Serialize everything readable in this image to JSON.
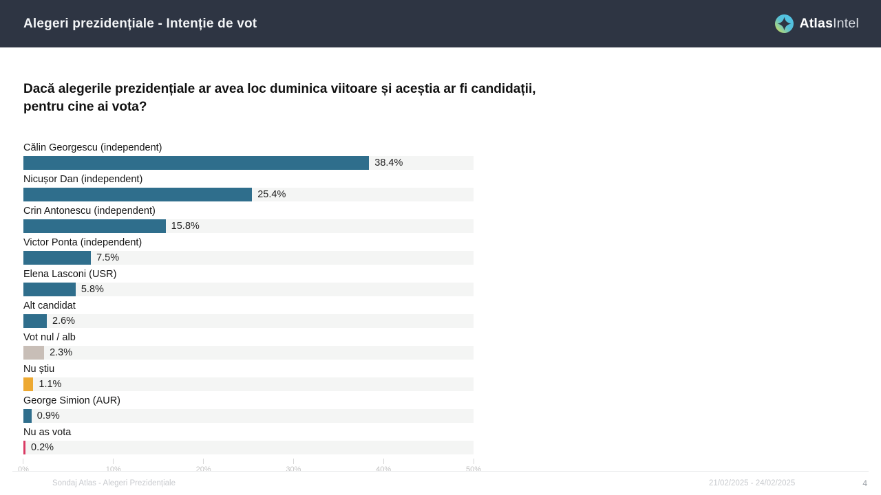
{
  "header": {
    "title": "Alegeri prezidențiale - Intenție de vot",
    "bg_color": "#2e3543",
    "logo": {
      "icon": "atlasintel-compass-icon",
      "brand_bold": "Atlas",
      "brand_light": "Intel"
    }
  },
  "question": "Dacă alegerile prezidențiale ar avea loc duminica viitoare și aceștia ar fi candidații,\npentru cine ai vota?",
  "chart_data": {
    "type": "bar",
    "orientation": "horizontal",
    "title": "Dacă alegerile prezidențiale ar avea loc duminica viitoare și aceștia ar fi candidații, pentru cine ai vota?",
    "categories": [
      "Călin Georgescu (independent)",
      "Nicușor Dan (independent)",
      "Crin Antonescu (independent)",
      "Victor Ponta (independent)",
      "Elena Lasconi (USR)",
      "Alt candidat",
      "Vot nul / alb",
      "Nu știu",
      "George Simion (AUR)",
      "Nu as vota"
    ],
    "values": [
      38.4,
      25.4,
      15.8,
      7.5,
      5.8,
      2.6,
      2.3,
      1.1,
      0.9,
      0.2
    ],
    "value_labels": [
      "38.4%",
      "25.4%",
      "15.8%",
      "7.5%",
      "5.8%",
      "2.6%",
      "2.3%",
      "1.1%",
      "0.9%",
      "0.2%"
    ],
    "bar_colors": [
      "#2f6e8c",
      "#2f6e8c",
      "#2f6e8c",
      "#2f6e8c",
      "#2f6e8c",
      "#2f6e8c",
      "#c8beb7",
      "#eda932",
      "#2f6e8c",
      "#d93a63"
    ],
    "track_color": "#f4f5f4",
    "xlim": [
      0,
      50
    ],
    "x_ticks": [
      "0%",
      "10%",
      "20%",
      "30%",
      "40%",
      "50%"
    ],
    "grid": false,
    "legend": false,
    "xlabel": "",
    "ylabel": ""
  },
  "footer": {
    "source": "Sondaj Atlas - Alegeri Prezidențiale",
    "date_range": "21/02/2025 - 24/02/2025",
    "page_number": "4"
  }
}
